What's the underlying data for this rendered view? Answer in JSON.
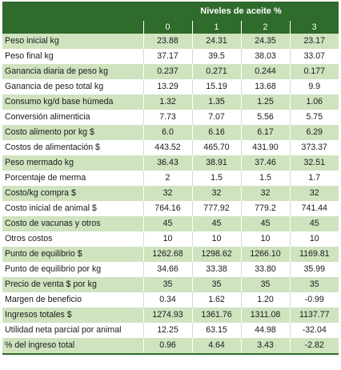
{
  "header": {
    "group_title": "Niveles de aceite %",
    "levels": [
      "0",
      "1",
      "2",
      "3"
    ]
  },
  "rows": [
    {
      "label": "Peso inicial kg",
      "values": [
        "23.88",
        "24.31",
        "24.35",
        "23.17"
      ]
    },
    {
      "label": "Peso final kg",
      "values": [
        "37.17",
        "39.5",
        "38.03",
        "33.07"
      ]
    },
    {
      "label": "Ganancia diaria de peso kg",
      "values": [
        "0.237",
        "0.271",
        "0.244",
        "0.177"
      ]
    },
    {
      "label": "Ganancia de peso total kg",
      "values": [
        "13.29",
        "15.19",
        "13.68",
        "9.9"
      ]
    },
    {
      "label": "Consumo kg/d base húmeda",
      "values": [
        "1.32",
        "1.35",
        "1.25",
        "1.06"
      ]
    },
    {
      "label": "Conversión alimenticia",
      "values": [
        "7.73",
        "7.07",
        "5.56",
        "5.75"
      ]
    },
    {
      "label": "Costo alimento por kg $",
      "values": [
        "6.0",
        "6.16",
        "6.17",
        "6.29"
      ]
    },
    {
      "label": "Costos de alimentación $",
      "values": [
        "443.52",
        "465.70",
        "431.90",
        "373.37"
      ]
    },
    {
      "label": "Peso mermado kg",
      "values": [
        "36.43",
        "38.91",
        "37.46",
        "32.51"
      ]
    },
    {
      "label": "Porcentaje de merma",
      "values": [
        "2",
        "1.5",
        "1.5",
        "1.7"
      ]
    },
    {
      "label": "Costo/kg compra $",
      "values": [
        "32",
        "32",
        "32",
        "32"
      ]
    },
    {
      "label": "Costo inicial de animal $",
      "values": [
        "764.16",
        "777.92",
        "779.2",
        "741.44"
      ]
    },
    {
      "label": "Costo de vacunas y otros",
      "values": [
        "45",
        "45",
        "45",
        "45"
      ]
    },
    {
      "label": "Otros costos",
      "values": [
        "10",
        "10",
        "10",
        "10"
      ]
    },
    {
      "label": "Punto de equilibrio $",
      "values": [
        "1262.68",
        "1298.62",
        "1266.10",
        "1169.81"
      ]
    },
    {
      "label": "Punto de equilibrio por kg",
      "values": [
        "34.66",
        "33.38",
        "33.80",
        "35.99"
      ]
    },
    {
      "label": "Precio de venta $ por kg",
      "values": [
        "35",
        "35",
        "35",
        "35"
      ]
    },
    {
      "label": "Margen de beneficio",
      "values": [
        "0.34",
        "1.62",
        "1.20",
        "-0.99"
      ]
    },
    {
      "label": "Ingresos totales $",
      "values": [
        "1274.93",
        "1361.76",
        "1311.08",
        "1137.77"
      ]
    },
    {
      "label": "Utilidad neta parcial por animal",
      "values": [
        "12.25",
        "63.15",
        "44.98",
        "-32.04"
      ]
    },
    {
      "label": "% del ingreso total",
      "values": [
        "0.96",
        "4.64",
        "3.43",
        "-2.82"
      ]
    }
  ],
  "colors": {
    "header_bg": "#2f6b2a",
    "stripe": "#cfe3bf"
  }
}
